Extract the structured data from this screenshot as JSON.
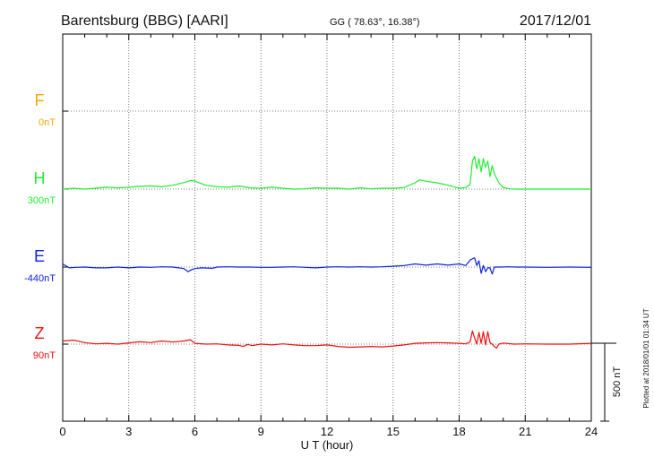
{
  "header": {
    "station": "Barentsburg (BBG)  [AARI]",
    "coords": "GG ( 78.63°,  16.38°)",
    "date": "2017/12/01"
  },
  "side_note": "Plotted at 2018/01/01 01:34 UT",
  "scale_label": "500 nT",
  "chart_data": {
    "type": "line",
    "xlabel": "U T (hour)",
    "xlim": [
      0,
      24
    ],
    "xticks": [
      0,
      3,
      6,
      9,
      12,
      15,
      18,
      21,
      24
    ],
    "xtick_labels": [
      "0",
      "3",
      "6",
      "9",
      "12",
      "15",
      "18",
      "21",
      "24"
    ],
    "grid": true,
    "scale_nT": 500,
    "series": [
      {
        "name": "F",
        "baseline_label": "0nT",
        "color": "#f5a800",
        "baseline_nT": 0,
        "x": [],
        "y": []
      },
      {
        "name": "H",
        "baseline_label": "300nT",
        "color": "#22ee33",
        "baseline_nT": 300,
        "x": [
          0,
          0.5,
          1,
          1.5,
          2,
          2.5,
          3,
          3.5,
          4,
          4.5,
          5,
          5.3,
          5.6,
          5.8,
          6.0,
          6.2,
          6.5,
          7,
          7.5,
          8,
          8.5,
          9,
          9.5,
          10,
          10.5,
          11,
          11.5,
          12,
          12.5,
          13,
          13.5,
          14,
          14.5,
          15,
          15.5,
          16,
          16.2,
          16.5,
          17,
          17.5,
          18,
          18.3,
          18.5,
          18.6,
          18.7,
          18.8,
          18.9,
          19.0,
          19.1,
          19.2,
          19.3,
          19.4,
          19.5,
          19.6,
          19.8,
          20,
          20.3,
          20.6,
          21,
          22,
          23,
          24
        ],
        "y": [
          300,
          305,
          300,
          306,
          312,
          308,
          312,
          318,
          320,
          315,
          325,
          335,
          345,
          355,
          352,
          340,
          325,
          315,
          312,
          320,
          308,
          305,
          312,
          305,
          300,
          302,
          308,
          305,
          306,
          300,
          308,
          302,
          306,
          305,
          310,
          340,
          360,
          350,
          340,
          325,
          305,
          310,
          330,
          480,
          510,
          430,
          495,
          410,
          495,
          440,
          480,
          380,
          450,
          400,
          340,
          310,
          302,
          300,
          300,
          300,
          300,
          300
        ]
      },
      {
        "name": "E",
        "baseline_label": "-440nT",
        "color": "#1122dd",
        "baseline_nT": -440,
        "x": [
          0,
          0.3,
          0.6,
          1,
          1.5,
          2,
          2.5,
          3,
          3.5,
          4,
          4.5,
          5,
          5.5,
          5.7,
          5.8,
          6.0,
          6.3,
          6.8,
          7,
          7.5,
          8,
          8.5,
          9,
          9.5,
          10,
          10.5,
          11,
          11.5,
          12,
          12.5,
          13,
          13.5,
          14,
          14.5,
          15,
          15.5,
          16,
          16.5,
          17,
          17.5,
          18,
          18.3,
          18.5,
          18.7,
          18.8,
          18.9,
          19.0,
          19.1,
          19.2,
          19.3,
          19.4,
          19.5,
          19.6,
          19.7,
          19.9,
          20.2,
          20.6,
          21,
          22,
          23,
          24
        ],
        "y": [
          -420,
          -445,
          -442,
          -440,
          -445,
          -445,
          -440,
          -445,
          -440,
          -442,
          -438,
          -440,
          -450,
          -470,
          -460,
          -450,
          -445,
          -448,
          -440,
          -438,
          -440,
          -440,
          -442,
          -442,
          -440,
          -438,
          -442,
          -445,
          -440,
          -438,
          -440,
          -438,
          -440,
          -438,
          -435,
          -430,
          -420,
          -428,
          -420,
          -428,
          -420,
          -430,
          -395,
          -380,
          -430,
          -400,
          -480,
          -430,
          -470,
          -445,
          -445,
          -485,
          -440,
          -440,
          -440,
          -438,
          -440,
          -440,
          -442,
          -440,
          -442
        ]
      },
      {
        "name": "Z",
        "baseline_label": "90nT",
        "color": "#ee1111",
        "baseline_nT": 90,
        "x": [
          0,
          0.5,
          1,
          1.5,
          2,
          2.5,
          3,
          3.5,
          4,
          4.5,
          5,
          5.5,
          5.8,
          6,
          6.5,
          7,
          7.5,
          8,
          8.2,
          8.4,
          8.6,
          9,
          9.5,
          10,
          10.5,
          11,
          11.5,
          12,
          12.5,
          13,
          13.5,
          14,
          14.5,
          15,
          15.5,
          16,
          16.5,
          17,
          17.5,
          18,
          18.3,
          18.5,
          18.6,
          18.7,
          18.8,
          18.9,
          19.0,
          19.1,
          19.2,
          19.3,
          19.4,
          19.5,
          19.6,
          19.7,
          19.8,
          20,
          20.5,
          21,
          22,
          23,
          24
        ],
        "y": [
          110,
          115,
          100,
          92,
          95,
          90,
          98,
          105,
          100,
          110,
          103,
          110,
          118,
          95,
          90,
          92,
          85,
          82,
          75,
          88,
          80,
          90,
          85,
          92,
          85,
          80,
          80,
          85,
          75,
          70,
          72,
          75,
          72,
          78,
          85,
          95,
          98,
          100,
          98,
          95,
          92,
          105,
          175,
          130,
          90,
          165,
          95,
          170,
          85,
          170,
          100,
          90,
          75,
          65,
          90,
          97,
          90,
          92,
          90,
          90,
          95
        ]
      }
    ]
  }
}
